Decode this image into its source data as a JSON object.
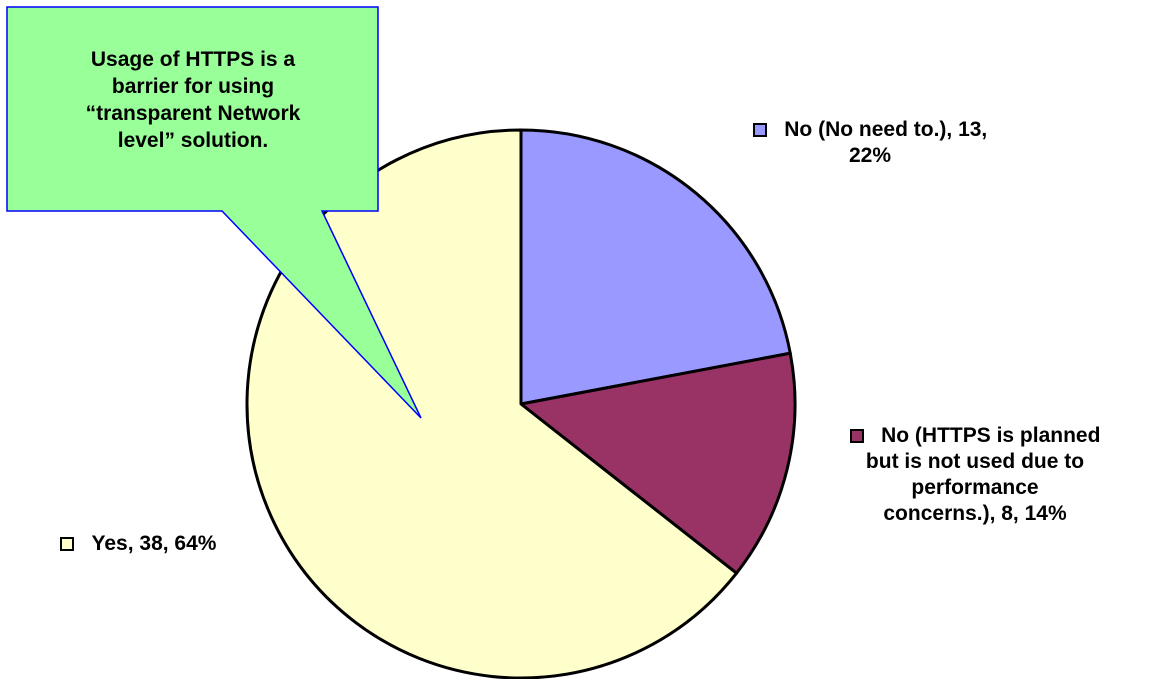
{
  "chart_data": {
    "type": "pie",
    "slices": [
      {
        "label": "No (No need to.)",
        "count": 13,
        "percent": "22%",
        "color": "#9999ff",
        "label_lines": [
          "No (No need to.), 13,",
          "22%"
        ]
      },
      {
        "label": "No (HTTPS is planned but is not used due to performance concerns.)",
        "count": 8,
        "percent": "14%",
        "color": "#993366",
        "label_lines": [
          "No (HTTPS is planned",
          "but is not used due to",
          "performance",
          "concerns.), 8, 14%"
        ]
      },
      {
        "label": "Yes",
        "count": 38,
        "percent": "64%",
        "color": "#ffffcc",
        "label_lines": [
          "Yes, 38, 64%"
        ]
      }
    ]
  },
  "callout": {
    "lines": [
      "Usage of HTTPS is a",
      "barrier for using",
      "“transparent Network",
      "level” solution."
    ],
    "fill": "#99ff99",
    "border": "#0000ff"
  }
}
